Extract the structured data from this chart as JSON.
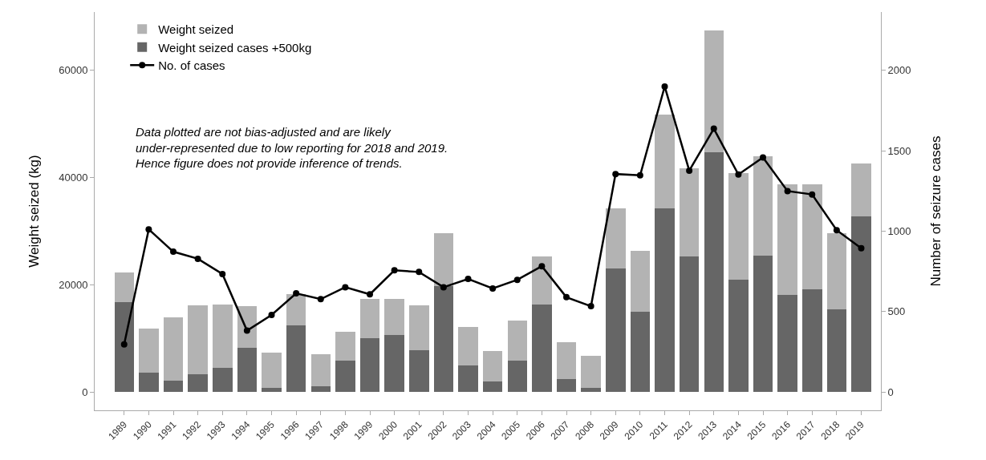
{
  "chart_data": {
    "type": "bar",
    "stacked": true,
    "categories": [
      "1989",
      "1990",
      "1991",
      "1992",
      "1993",
      "1994",
      "1995",
      "1996",
      "1997",
      "1998",
      "1999",
      "2000",
      "2001",
      "2002",
      "2003",
      "2004",
      "2005",
      "2006",
      "2007",
      "2008",
      "2009",
      "2010",
      "2011",
      "2012",
      "2013",
      "2014",
      "2015",
      "2016",
      "2017",
      "2018",
      "2019"
    ],
    "series": [
      {
        "name": "Weight seized cases +500kg",
        "color": "#666666",
        "values": [
          16800,
          3600,
          2100,
          3400,
          4500,
          8300,
          800,
          12500,
          1100,
          5900,
          10000,
          10700,
          7800,
          19800,
          5000,
          2000,
          5900,
          16400,
          2500,
          800,
          23000,
          15000,
          34300,
          25300,
          44700,
          20900,
          25400,
          18200,
          19200,
          15400,
          32800
        ]
      },
      {
        "name": "Weight seized",
        "color": "#b3b3b3",
        "values": [
          5500,
          8200,
          11900,
          12800,
          11800,
          7800,
          6600,
          5800,
          5900,
          5400,
          7400,
          6700,
          8400,
          9800,
          7200,
          5700,
          7500,
          8900,
          6800,
          5900,
          11300,
          11400,
          17400,
          16500,
          22800,
          19900,
          18600,
          20600,
          19600,
          14200,
          9800
        ]
      },
      {
        "name": "No. of cases",
        "type": "line",
        "axis": "y2",
        "color": "#000000",
        "marker": "circle",
        "line_style": "solid",
        "values": [
          296,
          1012,
          873,
          829,
          734,
          382,
          480,
          614,
          578,
          652,
          608,
          757,
          747,
          652,
          704,
          644,
          698,
          783,
          590,
          534,
          1356,
          1348,
          1900,
          1377,
          1638,
          1353,
          1459,
          1250,
          1229,
          1007,
          894
        ]
      }
    ],
    "ylabel": "Weight seized (kg)",
    "y2label": "Number of seizure cases",
    "ylim": [
      -3400,
      70900
    ],
    "yticks": [
      0,
      20000,
      40000,
      60000
    ],
    "y2lim": [
      -113.3,
      2363.3
    ],
    "y2ticks": [
      0,
      500,
      1000,
      1500,
      2000
    ],
    "legend": "top left",
    "annotations": [
      "Data plotted are not bias-adjusted and are likely\nunder-represented due to low reporting for 2018 and 2019.\nHence figure does not provide inference of trends."
    ]
  }
}
